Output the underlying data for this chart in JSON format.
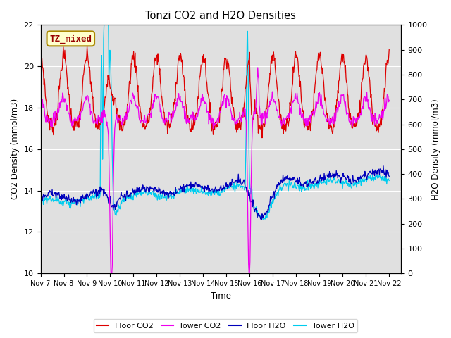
{
  "title": "Tonzi CO2 and H2O Densities",
  "xlabel": "Time",
  "ylabel_left": "CO2 Density (mmol/m3)",
  "ylabel_right": "H2O Density (mmol/m3)",
  "annotation": "TZ_mixed",
  "annotation_color": "#990000",
  "annotation_bg": "#ffffcc",
  "annotation_border": "#aa8800",
  "ylim_left": [
    10,
    22
  ],
  "ylim_right": [
    0,
    1000
  ],
  "yticks_left": [
    10,
    12,
    14,
    16,
    18,
    20,
    22
  ],
  "yticks_right": [
    0,
    100,
    200,
    300,
    400,
    500,
    600,
    700,
    800,
    900,
    1000
  ],
  "xtick_labels": [
    "Nov 7",
    "Nov 8",
    "Nov 9",
    "Nov 10",
    "Nov 11",
    "Nov 12",
    "Nov 13",
    "Nov 14",
    "Nov 15",
    "Nov 16",
    "Nov 17",
    "Nov 18",
    "Nov 19",
    "Nov 20",
    "Nov 21",
    "Nov 22"
  ],
  "colors": {
    "floor_co2": "#dd0000",
    "tower_co2": "#ee00ee",
    "floor_h2o": "#0000bb",
    "tower_h2o": "#00ccee"
  },
  "legend_labels": [
    "Floor CO2",
    "Tower CO2",
    "Floor H2O",
    "Tower H2O"
  ],
  "bg_color": "#e0e0e0",
  "grid_color": "#ffffff"
}
